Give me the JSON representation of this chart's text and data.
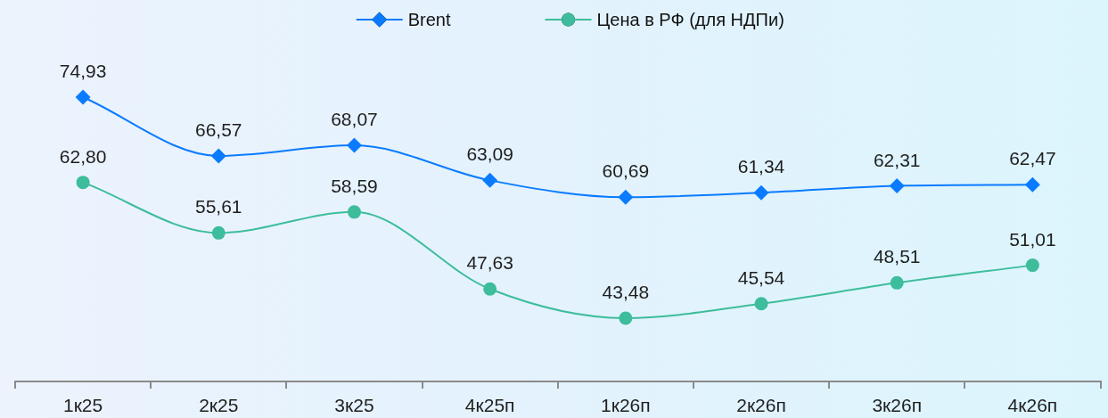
{
  "chart_data": {
    "type": "line",
    "categories": [
      "1к25",
      "2к25",
      "3к25",
      "4к25п",
      "1к26п",
      "2к26п",
      "3к26п",
      "4к26п"
    ],
    "series": [
      {
        "name": "Brent",
        "color": "#0a7bff",
        "marker": "diamond",
        "values": [
          74.93,
          66.57,
          68.07,
          63.09,
          60.69,
          61.34,
          62.31,
          62.47
        ],
        "value_labels": [
          "74,93",
          "66,57",
          "68,07",
          "63,09",
          "60,69",
          "61,34",
          "62,31",
          "62,47"
        ]
      },
      {
        "name": "Цена в РФ (для НДПи)",
        "color": "#3dbd9b",
        "marker": "circle",
        "values": [
          62.8,
          55.61,
          58.59,
          47.63,
          43.48,
          45.54,
          48.51,
          51.01
        ],
        "value_labels": [
          "62,80",
          "55,61",
          "58,59",
          "47,63",
          "43,48",
          "45,54",
          "48,51",
          "51,01"
        ]
      }
    ],
    "tick_labels": "x",
    "legend": "top"
  }
}
